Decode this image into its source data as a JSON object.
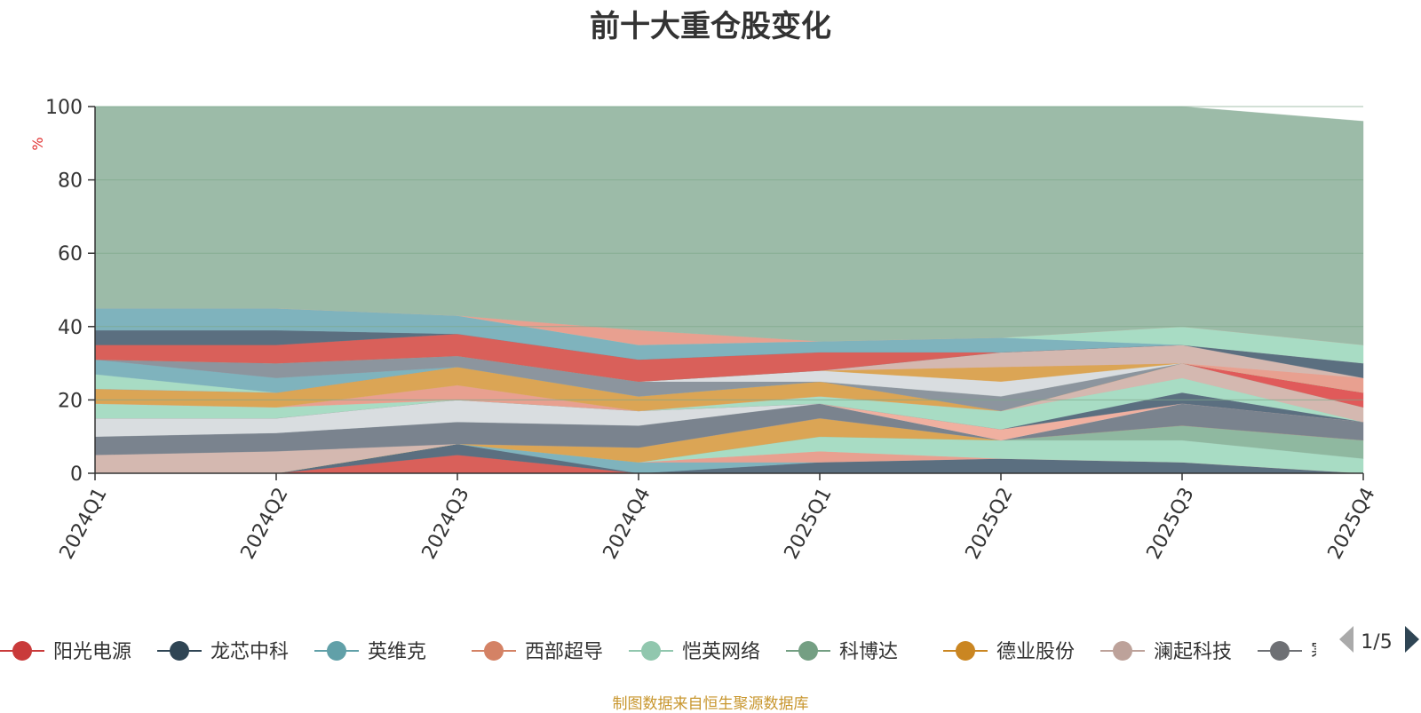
{
  "chart_data": {
    "type": "area",
    "stacked": true,
    "title": "前十大重仓股变化",
    "ylabel": "%",
    "ylim": [
      0,
      100
    ],
    "yticks": [
      0,
      20,
      40,
      60,
      80,
      100
    ],
    "grid": true,
    "categories": [
      "2024Q1",
      "2024Q2",
      "2024Q3",
      "2024Q4",
      "2025Q1",
      "2025Q2",
      "2025Q3",
      "2025Q4"
    ],
    "series": [
      {
        "name": "阳光电源",
        "color": "#d9605a",
        "values": [
          0,
          0,
          5,
          0,
          0,
          0,
          0,
          0
        ]
      },
      {
        "name": "龙芯中科",
        "color": "#5b6f80",
        "values": [
          0,
          0,
          3,
          0,
          3,
          4,
          3,
          0
        ]
      },
      {
        "name": "英维克",
        "color": "#7fb3bd",
        "values": [
          0,
          0,
          0,
          3,
          0,
          0,
          0,
          0
        ]
      },
      {
        "name": "西部超导",
        "color": "#e8a090",
        "values": [
          0,
          0,
          0,
          0,
          3,
          0,
          0,
          0
        ]
      },
      {
        "name": "恺英网络",
        "color": "#a8dcc4",
        "values": [
          0,
          0,
          0,
          0,
          4,
          5,
          6,
          4
        ]
      },
      {
        "name": "科博达",
        "color": "#8fb8a0",
        "values": [
          0,
          0,
          0,
          0,
          0,
          0,
          4,
          5
        ]
      },
      {
        "name": "德业股份",
        "color": "#dba555",
        "values": [
          0,
          0,
          0,
          4,
          5,
          0,
          0,
          0
        ]
      },
      {
        "name": "澜起科技",
        "color": "#d4b8b0",
        "values": [
          5,
          6,
          0,
          0,
          0,
          0,
          0,
          0
        ]
      },
      {
        "name": "寒武纪",
        "color": "#7a838e",
        "values": [
          5,
          5,
          6,
          6,
          4,
          0,
          6,
          5
        ]
      },
      {
        "name": "",
        "color": "#d9dde0",
        "values": [
          5,
          4,
          6,
          4,
          0,
          0,
          0,
          0
        ]
      },
      {
        "name": "",
        "color": "#f0b0a0",
        "values": [
          0,
          0,
          0,
          0,
          0,
          3,
          0,
          0
        ]
      },
      {
        "name": "",
        "color": "#5b6f80",
        "values": [
          0,
          0,
          0,
          0,
          0,
          0,
          3,
          0
        ]
      },
      {
        "name": "",
        "color": "#a8dcc4",
        "values": [
          4,
          3,
          0,
          0,
          2,
          5,
          4,
          0
        ]
      },
      {
        "name": "",
        "color": "#e8a090",
        "values": [
          0,
          0,
          4,
          0,
          0,
          0,
          0,
          0
        ]
      },
      {
        "name": "",
        "color": "#d4b8b0",
        "values": [
          0,
          0,
          0,
          0,
          0,
          0,
          4,
          4
        ]
      },
      {
        "name": "",
        "color": "#dba555",
        "values": [
          4,
          4,
          5,
          4,
          4,
          0,
          0,
          0
        ]
      },
      {
        "name": "",
        "color": "#8c959e",
        "values": [
          0,
          0,
          0,
          0,
          0,
          4,
          0,
          0
        ]
      },
      {
        "name": "",
        "color": "#e05a5a",
        "values": [
          0,
          0,
          0,
          0,
          0,
          0,
          0,
          4
        ]
      },
      {
        "name": "",
        "color": "#a8dcc4",
        "values": [
          4,
          0,
          0,
          0,
          0,
          0,
          0,
          0
        ]
      },
      {
        "name": "",
        "color": "#7fb3bd",
        "values": [
          4,
          4,
          0,
          0,
          0,
          0,
          0,
          0
        ]
      },
      {
        "name": "",
        "color": "#8c959e",
        "values": [
          0,
          4,
          3,
          4,
          0,
          0,
          0,
          0
        ]
      },
      {
        "name": "",
        "color": "#d9dde0",
        "values": [
          0,
          0,
          0,
          0,
          3,
          4,
          0,
          0
        ]
      },
      {
        "name": "",
        "color": "#dba555",
        "values": [
          0,
          0,
          0,
          0,
          0,
          4,
          0,
          0
        ]
      },
      {
        "name": "",
        "color": "#e8a090",
        "values": [
          0,
          0,
          0,
          0,
          0,
          0,
          0,
          4
        ]
      },
      {
        "name": "",
        "color": "#d4b8b0",
        "values": [
          0,
          0,
          0,
          0,
          0,
          4,
          5,
          0
        ]
      },
      {
        "name": "",
        "color": "#5b6f80",
        "values": [
          0,
          0,
          0,
          0,
          0,
          0,
          0,
          4
        ]
      },
      {
        "name": "",
        "color": "#d9605a",
        "values": [
          4,
          5,
          6,
          6,
          5,
          0,
          0,
          0
        ]
      },
      {
        "name": "",
        "color": "#5b6f80",
        "values": [
          4,
          4,
          0,
          0,
          0,
          0,
          0,
          0
        ]
      },
      {
        "name": "",
        "color": "#7fb3bd",
        "values": [
          6,
          6,
          5,
          4,
          3,
          4,
          0,
          0
        ]
      },
      {
        "name": "",
        "color": "#a8dcc4",
        "values": [
          0,
          0,
          0,
          0,
          0,
          0,
          5,
          5
        ]
      },
      {
        "name": "",
        "color": "#e8a090",
        "values": [
          0,
          0,
          0,
          4,
          0,
          0,
          0,
          0
        ]
      },
      {
        "name": "",
        "color": "#9cbba8",
        "values": [
          55,
          55,
          57,
          61,
          64,
          63,
          60,
          61
        ]
      }
    ]
  },
  "legend": {
    "items": [
      {
        "label": "阳光电源",
        "color": "#c93a3a"
      },
      {
        "label": "龙芯中科",
        "color": "#2f4554"
      },
      {
        "label": "英维克",
        "color": "#61a0a8"
      },
      {
        "label": "西部超导",
        "color": "#d48265"
      },
      {
        "label": "恺英网络",
        "color": "#91c7ae"
      },
      {
        "label": "科博达",
        "color": "#749f83"
      },
      {
        "label": "德业股份",
        "color": "#ca8622"
      },
      {
        "label": "澜起科技",
        "color": "#bda29a"
      },
      {
        "label": "寒武纪",
        "color": "#6e7074"
      }
    ],
    "page": "1/5"
  },
  "source_note": "制图数据来自恒生聚源数据库"
}
